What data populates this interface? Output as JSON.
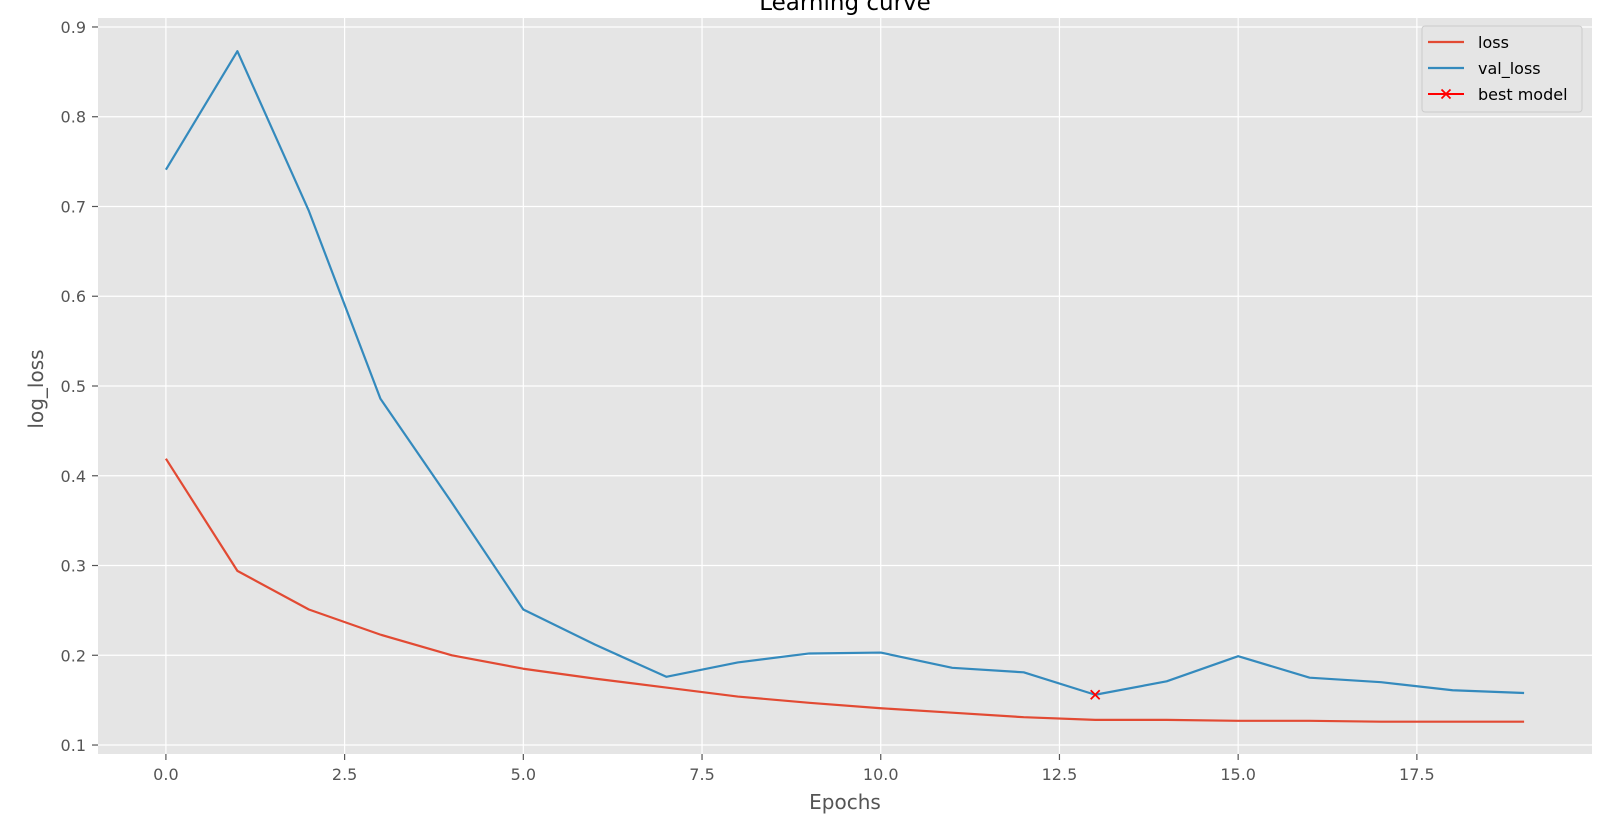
{
  "chart_data": {
    "type": "line",
    "title": "Learning curve",
    "xlabel": "Epochs",
    "ylabel": "log_loss",
    "xlim": [
      -0.95,
      19.95
    ],
    "ylim": [
      0.09,
      0.91
    ],
    "xticks": [
      0,
      2.5,
      5,
      7.5,
      10,
      12.5,
      15,
      17.5
    ],
    "xtick_labels": [
      "0.0",
      "2.5",
      "5.0",
      "7.5",
      "10.0",
      "12.5",
      "15.0",
      "17.5"
    ],
    "yticks": [
      0.1,
      0.2,
      0.3,
      0.4,
      0.5,
      0.6,
      0.7,
      0.8,
      0.9
    ],
    "ytick_labels": [
      "0.1",
      "0.2",
      "0.3",
      "0.4",
      "0.5",
      "0.6",
      "0.7",
      "0.8",
      "0.9"
    ],
    "grid": true,
    "legend_position": "top-right",
    "background_color": "#e5e5e5",
    "grid_color": "#ffffff",
    "x": [
      0,
      1,
      2,
      3,
      4,
      5,
      6,
      7,
      8,
      9,
      10,
      11,
      12,
      13,
      14,
      15,
      16,
      17,
      18,
      19
    ],
    "series": [
      {
        "name": "loss",
        "color": "#e24a33",
        "values": [
          0.419,
          0.294,
          0.251,
          0.223,
          0.2,
          0.185,
          0.174,
          0.164,
          0.154,
          0.147,
          0.141,
          0.136,
          0.131,
          0.128,
          0.128,
          0.127,
          0.127,
          0.126,
          0.126,
          0.126
        ]
      },
      {
        "name": "val_loss",
        "color": "#348abd",
        "values": [
          0.741,
          0.873,
          0.695,
          0.486,
          0.37,
          0.251,
          0.212,
          0.176,
          0.192,
          0.202,
          0.203,
          0.186,
          0.181,
          0.156,
          0.171,
          0.199,
          0.175,
          0.17,
          0.161,
          0.158
        ]
      }
    ],
    "markers": [
      {
        "name": "best model",
        "color": "#ff0000",
        "symbol": "x",
        "x": 13,
        "y": 0.156
      }
    ]
  }
}
